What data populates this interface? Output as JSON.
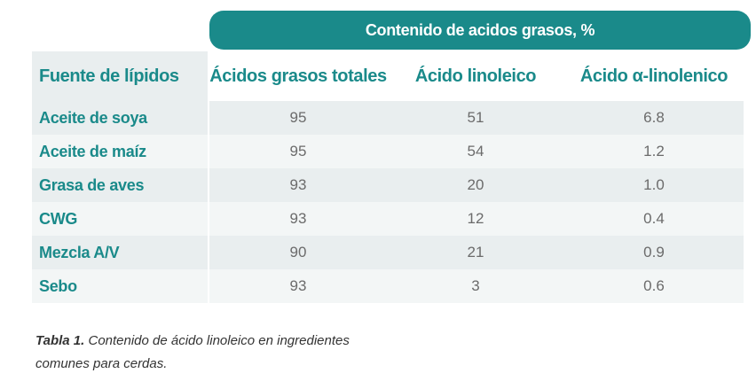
{
  "table": {
    "group_header": "Contenido de acidos grasos, %",
    "columns": [
      "Fuente de lípidos",
      "Ácidos grasos totales",
      "Ácido linoleico",
      "Ácido α-linolenico"
    ],
    "rows": [
      [
        "Aceite de soya",
        "95",
        "51",
        "6.8"
      ],
      [
        "Aceite de maíz",
        "95",
        "54",
        "1.2"
      ],
      [
        "Grasa de aves",
        "93",
        "20",
        "1.0"
      ],
      [
        "CWG",
        "93",
        "12",
        "0.4"
      ],
      [
        "Mezcla A/V",
        "90",
        "21",
        "0.9"
      ],
      [
        "Sebo",
        "93",
        "3",
        "0.6"
      ]
    ]
  },
  "caption": {
    "label": "Tabla 1.",
    "text": " Contenido de ácido linoleico en ingredientes comunes para cerdas."
  },
  "colors": {
    "accent": "#1a8a8a",
    "row_dark": "#e9eeef",
    "row_light": "#f3f6f6"
  }
}
